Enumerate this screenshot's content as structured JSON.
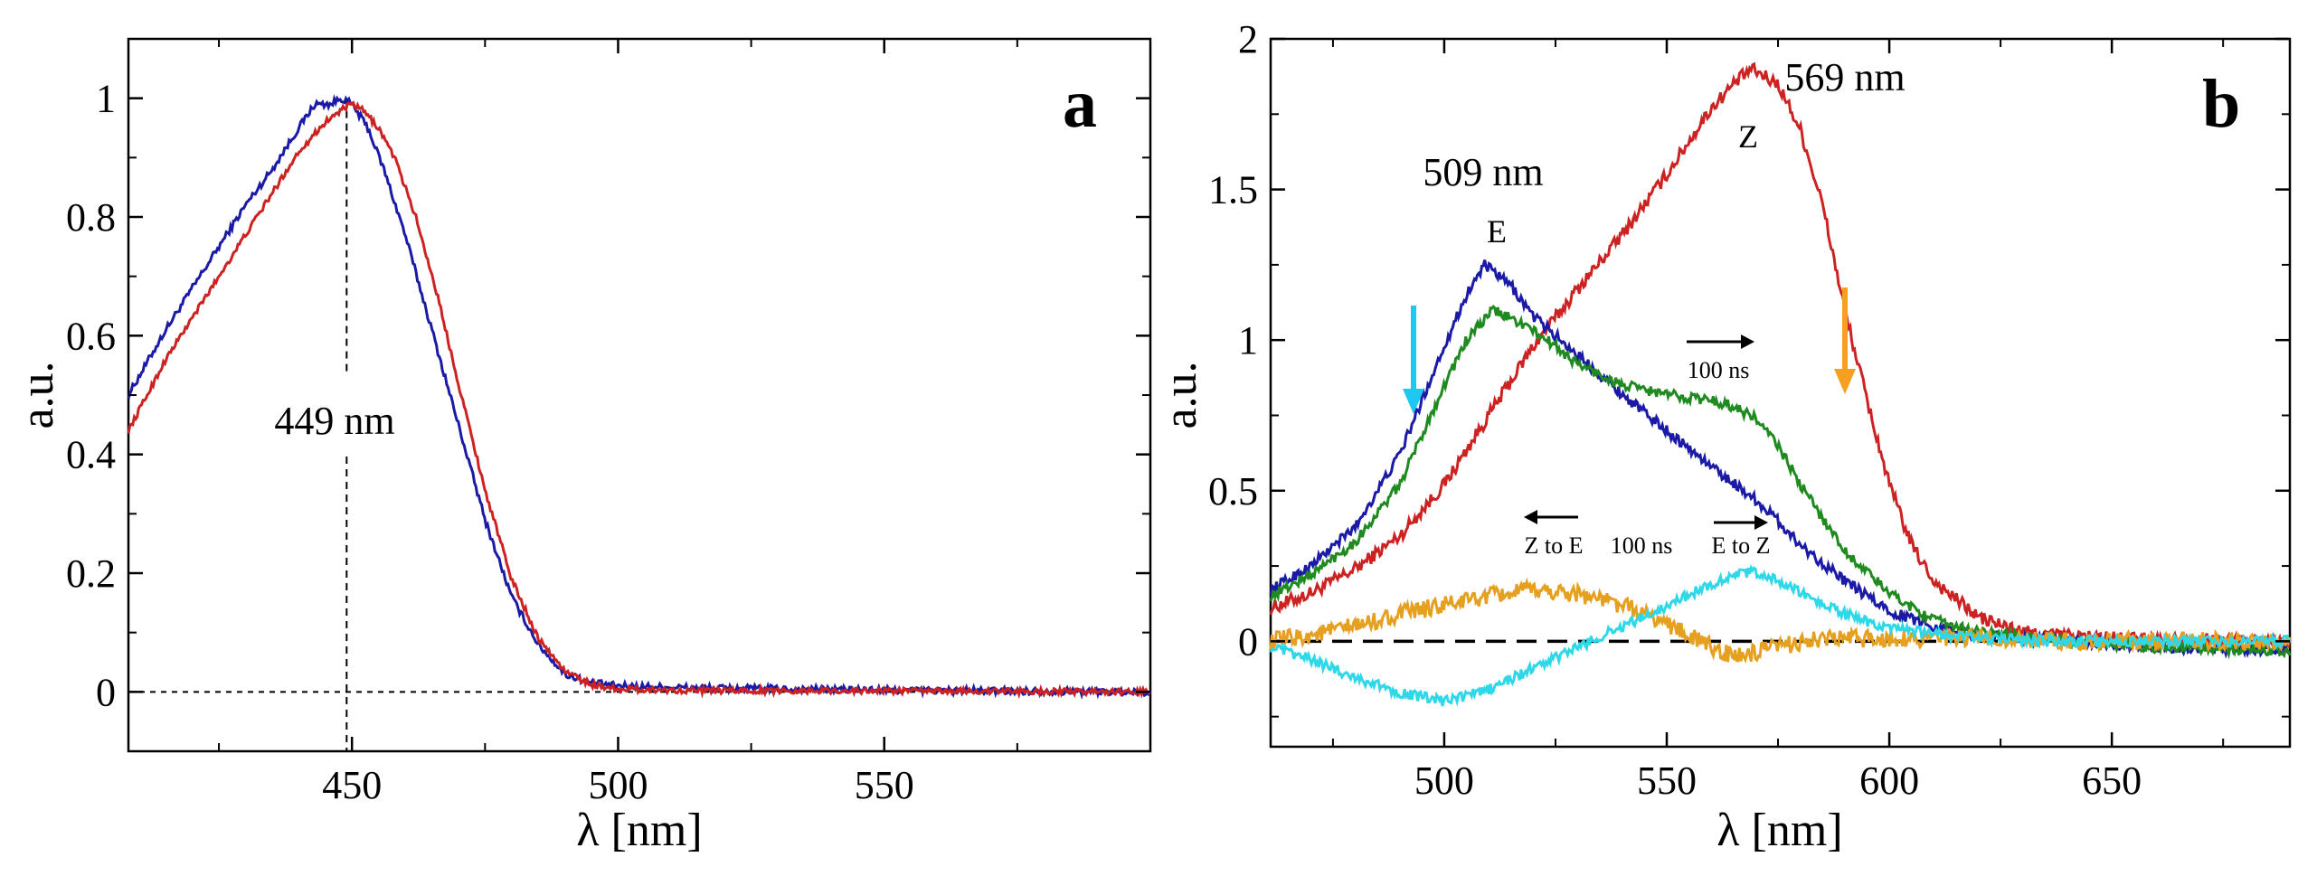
{
  "chart_data": [
    {
      "panel": "a",
      "type": "line",
      "xlabel": "λ [nm]",
      "ylabel": "a.u.",
      "xlim": [
        408,
        600
      ],
      "ylim": [
        -0.1,
        1.1
      ],
      "xticks": [
        450,
        500,
        550
      ],
      "yticks": [
        0,
        0.2,
        0.4,
        0.6,
        0.8,
        1
      ],
      "annotations": [
        "449 nm"
      ],
      "peak_marker_x": 449,
      "series": [
        {
          "name": "blue",
          "color": "#1a1aa6",
          "x": [
            408,
            415,
            420,
            425,
            430,
            435,
            440,
            443,
            446,
            448,
            450,
            453,
            456,
            460,
            465,
            470,
            475,
            480,
            485,
            490,
            495,
            500,
            510,
            520,
            550,
            600
          ],
          "y": [
            0.5,
            0.61,
            0.68,
            0.75,
            0.82,
            0.88,
            0.95,
            0.99,
            0.99,
            1.0,
            0.99,
            0.95,
            0.88,
            0.77,
            0.61,
            0.45,
            0.29,
            0.16,
            0.08,
            0.03,
            0.015,
            0.01,
            0.008,
            0.006,
            0.003,
            0.0
          ]
        },
        {
          "name": "red",
          "color": "#cc2222",
          "x": [
            408,
            415,
            420,
            425,
            430,
            435,
            440,
            445,
            448,
            450,
            452,
            455,
            458,
            462,
            466,
            470,
            475,
            480,
            485,
            490,
            495,
            500,
            510,
            520,
            550,
            600
          ],
          "y": [
            0.44,
            0.56,
            0.63,
            0.7,
            0.77,
            0.84,
            0.91,
            0.96,
            0.98,
            0.99,
            0.98,
            0.95,
            0.9,
            0.8,
            0.67,
            0.52,
            0.34,
            0.19,
            0.09,
            0.035,
            0.012,
            0.005,
            0.003,
            0.002,
            0.002,
            0.0
          ]
        }
      ]
    },
    {
      "panel": "b",
      "type": "line",
      "xlabel": "λ [nm]",
      "ylabel": "a.u.",
      "xlim": [
        461,
        690
      ],
      "ylim": [
        -0.35,
        2.0
      ],
      "xticks": [
        500,
        550,
        600,
        650
      ],
      "yticks": [
        0,
        0.5,
        1,
        1.5,
        2
      ],
      "peak_labels": [
        "509 nm",
        "569 nm"
      ],
      "curve_labels": [
        "E",
        "Z"
      ],
      "arrow_labels": [
        "100 ns",
        "Z to E",
        "100 ns",
        "E to Z"
      ],
      "arrow_colors": {
        "down_left": "#1ec8f0",
        "down_right": "#f5a020"
      },
      "series": [
        {
          "name": "red (Z)",
          "color": "#cc2222",
          "x": [
            461,
            470,
            480,
            490,
            500,
            510,
            520,
            530,
            540,
            550,
            555,
            560,
            565,
            569,
            575,
            580,
            585,
            590,
            595,
            600,
            605,
            610,
            620,
            630,
            650,
            690
          ],
          "y": [
            0.11,
            0.16,
            0.24,
            0.35,
            0.52,
            0.75,
            0.98,
            1.17,
            1.35,
            1.55,
            1.66,
            1.77,
            1.85,
            1.9,
            1.85,
            1.7,
            1.45,
            1.1,
            0.8,
            0.52,
            0.32,
            0.2,
            0.08,
            0.03,
            0.01,
            0.0
          ]
        },
        {
          "name": "blue (E)",
          "color": "#1a1aa6",
          "x": [
            461,
            470,
            480,
            490,
            500,
            505,
            509,
            515,
            520,
            530,
            540,
            550,
            560,
            570,
            575,
            580,
            590,
            600,
            610,
            620,
            640,
            660,
            690
          ],
          "y": [
            0.17,
            0.25,
            0.38,
            0.62,
            0.98,
            1.15,
            1.25,
            1.18,
            1.08,
            0.95,
            0.82,
            0.7,
            0.58,
            0.47,
            0.4,
            0.32,
            0.2,
            0.1,
            0.05,
            0.02,
            0.0,
            -0.02,
            -0.03
          ]
        },
        {
          "name": "green",
          "color": "#1f8a1f",
          "x": [
            461,
            470,
            480,
            490,
            500,
            505,
            511,
            518,
            525,
            530,
            540,
            550,
            560,
            565,
            570,
            575,
            580,
            590,
            600,
            610,
            620,
            640,
            660,
            690
          ],
          "y": [
            0.15,
            0.22,
            0.33,
            0.52,
            0.85,
            1.0,
            1.1,
            1.05,
            0.98,
            0.92,
            0.85,
            0.82,
            0.8,
            0.78,
            0.74,
            0.65,
            0.52,
            0.3,
            0.16,
            0.07,
            0.03,
            0.0,
            -0.02,
            -0.03
          ]
        },
        {
          "name": "orange (100 ns difference)",
          "color": "#e6a020",
          "x": [
            461,
            470,
            480,
            490,
            500,
            510,
            520,
            530,
            540,
            550,
            555,
            560,
            565,
            570,
            575,
            580,
            590,
            600,
            620,
            640,
            660,
            690
          ],
          "y": [
            0.0,
            0.02,
            0.05,
            0.09,
            0.12,
            0.15,
            0.17,
            0.16,
            0.12,
            0.06,
            0.02,
            -0.02,
            -0.05,
            -0.04,
            -0.02,
            0.0,
            0.01,
            0.01,
            0.01,
            0.0,
            0.0,
            0.0
          ]
        },
        {
          "name": "cyan (100 ns difference)",
          "color": "#2fd8e8",
          "x": [
            461,
            470,
            480,
            490,
            500,
            510,
            520,
            530,
            540,
            545,
            550,
            560,
            565,
            570,
            575,
            580,
            590,
            600,
            620,
            640,
            660,
            690
          ],
          "y": [
            -0.02,
            -0.06,
            -0.12,
            -0.17,
            -0.2,
            -0.16,
            -0.09,
            -0.02,
            0.05,
            0.08,
            0.12,
            0.19,
            0.22,
            0.23,
            0.2,
            0.16,
            0.09,
            0.04,
            0.01,
            0.0,
            0.0,
            0.0
          ]
        }
      ]
    }
  ]
}
